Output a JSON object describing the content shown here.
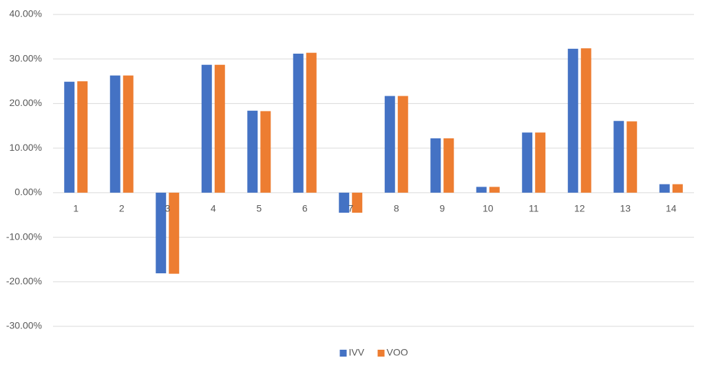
{
  "chart_data": {
    "type": "bar",
    "categories": [
      "1",
      "2",
      "3",
      "4",
      "5",
      "6",
      "7",
      "8",
      "9",
      "10",
      "11",
      "12",
      "13",
      "14"
    ],
    "series": [
      {
        "name": "IVV",
        "color": "#4472c4",
        "values": [
          24.9,
          26.3,
          -18.1,
          28.7,
          18.4,
          31.2,
          -4.5,
          21.7,
          12.2,
          1.3,
          13.5,
          32.3,
          16.1,
          1.9
        ]
      },
      {
        "name": "VOO",
        "color": "#ed7d31",
        "values": [
          25.0,
          26.3,
          -18.2,
          28.7,
          18.3,
          31.4,
          -4.5,
          21.7,
          12.2,
          1.3,
          13.5,
          32.4,
          16.0,
          1.9
        ]
      }
    ],
    "ylim": [
      -30,
      40
    ],
    "yticks": [
      {
        "value": -30,
        "label": "-30.00%"
      },
      {
        "value": -20,
        "label": "-20.00%"
      },
      {
        "value": -10,
        "label": "-10.00%"
      },
      {
        "value": 0,
        "label": "0.00%"
      },
      {
        "value": 10,
        "label": "10.00%"
      },
      {
        "value": 20,
        "label": "20.00%"
      },
      {
        "value": 30,
        "label": "30.00%"
      },
      {
        "value": 40,
        "label": "40.00%"
      }
    ],
    "grid": true,
    "legend": "bottom"
  }
}
